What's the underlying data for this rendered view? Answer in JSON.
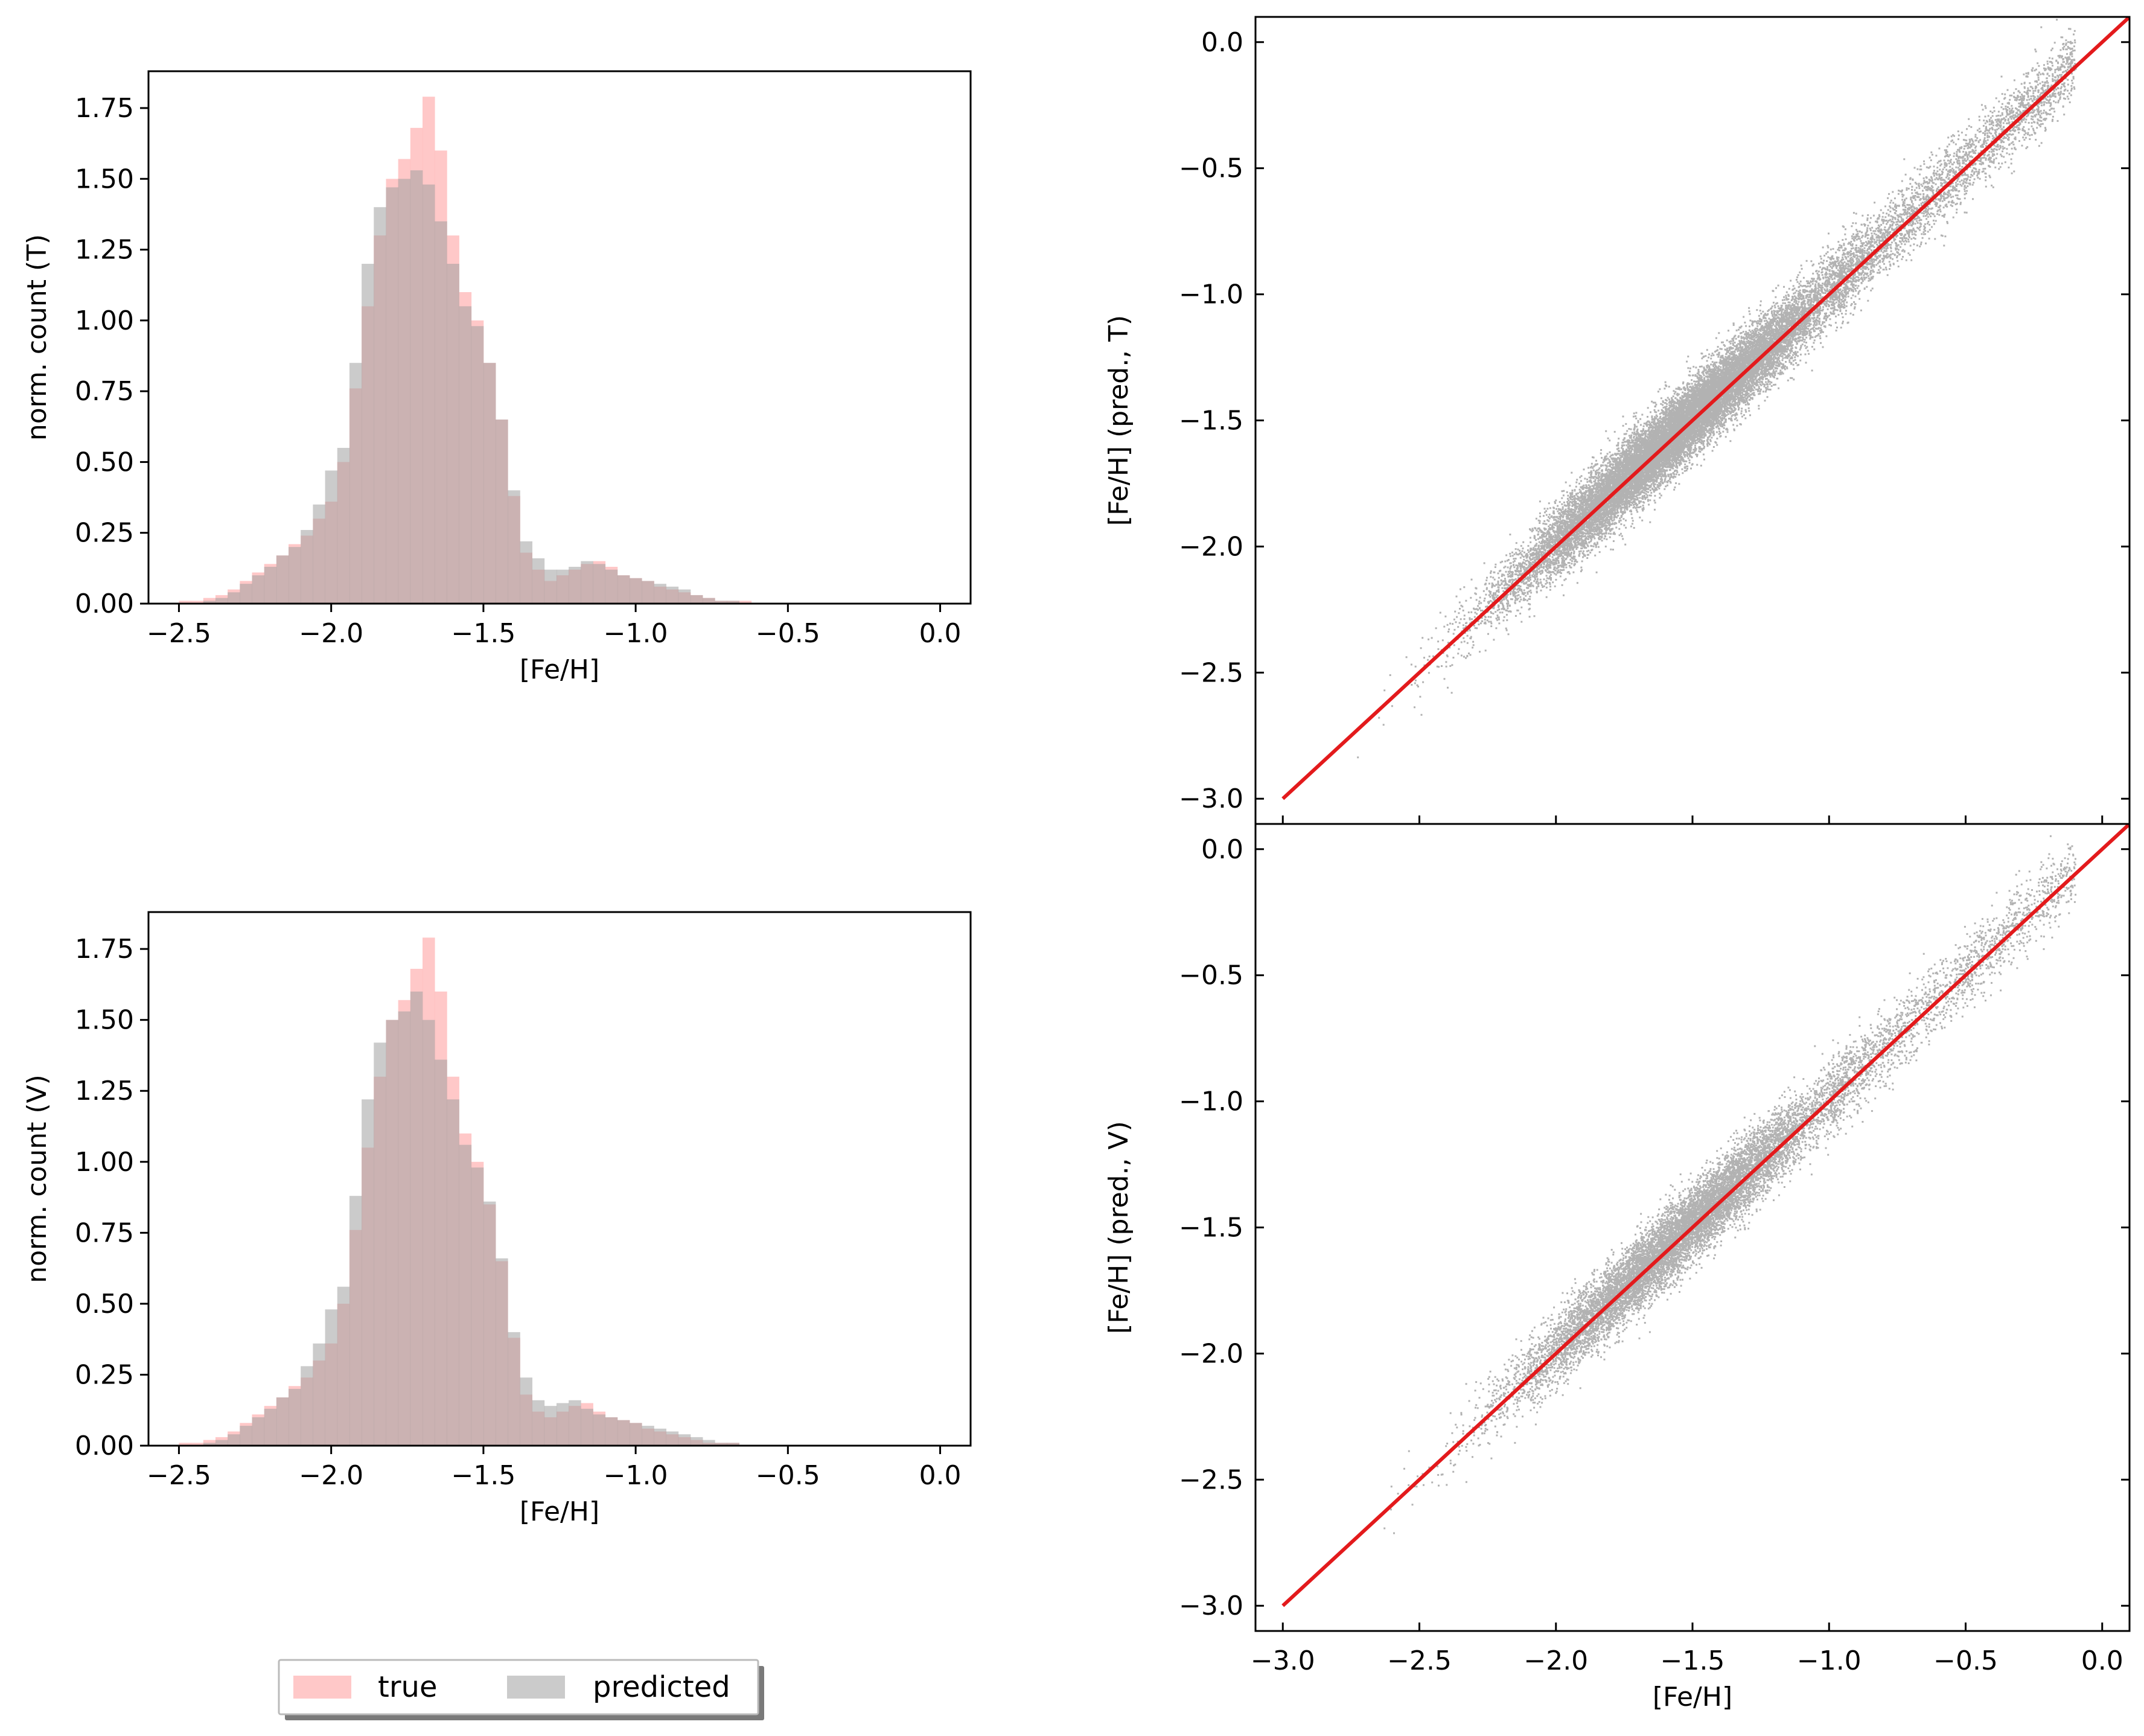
{
  "colors": {
    "true_fill": "#ffb6b6",
    "predicted_fill": "#a0a0a0",
    "scatter": "#000000",
    "one_to_one": "#e31a1c"
  },
  "legend": {
    "placement": "bottom-left",
    "entries": [
      {
        "label": "true",
        "color": "#ffb6b6"
      },
      {
        "label": "predicted",
        "color": "#a0a0a0"
      }
    ]
  },
  "chart_data": [
    {
      "type": "bar",
      "name": "hist_T",
      "xlabel": "[Fe/H]",
      "ylabel": "norm. count (T)",
      "xlim": [
        -2.6,
        0.1
      ],
      "ylim": [
        0,
        1.88
      ],
      "xticks": [
        -2.5,
        -2.0,
        -1.5,
        -1.0,
        -0.5,
        0.0
      ],
      "xtick_labels": [
        "−2.5",
        "−2.0",
        "−1.5",
        "−1.0",
        "−0.5",
        "0.0"
      ],
      "yticks": [
        0,
        0.25,
        0.5,
        0.75,
        1.0,
        1.25,
        1.5,
        1.75
      ],
      "ytick_labels": [
        "0.00",
        "0.25",
        "0.50",
        "0.75",
        "1.00",
        "1.25",
        "1.50",
        "1.75"
      ],
      "bin_start": -2.5,
      "bin_width": 0.04,
      "series": [
        {
          "label": "true",
          "values": [
            0.01,
            0.01,
            0.02,
            0.03,
            0.05,
            0.08,
            0.11,
            0.14,
            0.17,
            0.21,
            0.24,
            0.3,
            0.36,
            0.5,
            0.76,
            1.05,
            1.3,
            1.5,
            1.57,
            1.68,
            1.79,
            1.6,
            1.3,
            1.1,
            1.0,
            0.85,
            0.65,
            0.38,
            0.18,
            0.12,
            0.08,
            0.1,
            0.12,
            0.14,
            0.15,
            0.13,
            0.1,
            0.09,
            0.08,
            0.06,
            0.05,
            0.04,
            0.03,
            0.02,
            0.01,
            0.01,
            0.01,
            0.0,
            0.0,
            0.0,
            0.0,
            0.0,
            0.0,
            0.0,
            0.0,
            0.0,
            0.0,
            0.0,
            0.0,
            0.0,
            0.0,
            0.0
          ]
        },
        {
          "label": "predicted",
          "values": [
            0.0,
            0.0,
            0.01,
            0.02,
            0.04,
            0.07,
            0.1,
            0.13,
            0.17,
            0.2,
            0.26,
            0.35,
            0.47,
            0.55,
            0.85,
            1.2,
            1.4,
            1.47,
            1.5,
            1.53,
            1.48,
            1.35,
            1.2,
            1.05,
            0.98,
            0.85,
            0.65,
            0.4,
            0.22,
            0.16,
            0.12,
            0.12,
            0.13,
            0.15,
            0.14,
            0.12,
            0.1,
            0.09,
            0.08,
            0.07,
            0.06,
            0.05,
            0.03,
            0.02,
            0.01,
            0.01,
            0.0,
            0.0,
            0.0,
            0.0,
            0.0,
            0.0,
            0.0,
            0.0,
            0.0,
            0.0,
            0.0,
            0.0,
            0.0,
            0.0,
            0.0,
            0.0
          ]
        }
      ]
    },
    {
      "type": "bar",
      "name": "hist_V",
      "xlabel": "[Fe/H]",
      "ylabel": "norm. count (V)",
      "xlim": [
        -2.6,
        0.1
      ],
      "ylim": [
        0,
        1.88
      ],
      "xticks": [
        -2.5,
        -2.0,
        -1.5,
        -1.0,
        -0.5,
        0.0
      ],
      "xtick_labels": [
        "−2.5",
        "−2.0",
        "−1.5",
        "−1.0",
        "−0.5",
        "0.0"
      ],
      "yticks": [
        0,
        0.25,
        0.5,
        0.75,
        1.0,
        1.25,
        1.5,
        1.75
      ],
      "ytick_labels": [
        "0.00",
        "0.25",
        "0.50",
        "0.75",
        "1.00",
        "1.25",
        "1.50",
        "1.75"
      ],
      "bin_start": -2.5,
      "bin_width": 0.04,
      "series": [
        {
          "label": "true",
          "values": [
            0.01,
            0.01,
            0.02,
            0.03,
            0.05,
            0.08,
            0.11,
            0.14,
            0.17,
            0.21,
            0.24,
            0.3,
            0.36,
            0.5,
            0.76,
            1.05,
            1.3,
            1.5,
            1.57,
            1.68,
            1.79,
            1.6,
            1.3,
            1.1,
            1.0,
            0.85,
            0.65,
            0.38,
            0.18,
            0.12,
            0.1,
            0.12,
            0.14,
            0.15,
            0.12,
            0.1,
            0.09,
            0.08,
            0.06,
            0.05,
            0.04,
            0.03,
            0.02,
            0.01,
            0.01,
            0.01,
            0.0,
            0.0,
            0.0,
            0.0,
            0.0,
            0.0,
            0.0,
            0.0,
            0.0,
            0.0,
            0.0,
            0.0,
            0.0,
            0.0,
            0.0,
            0.0
          ]
        },
        {
          "label": "predicted",
          "values": [
            0.0,
            0.0,
            0.01,
            0.02,
            0.04,
            0.07,
            0.1,
            0.13,
            0.17,
            0.2,
            0.28,
            0.36,
            0.48,
            0.56,
            0.88,
            1.22,
            1.42,
            1.5,
            1.53,
            1.6,
            1.5,
            1.36,
            1.22,
            1.06,
            0.98,
            0.86,
            0.66,
            0.4,
            0.24,
            0.16,
            0.14,
            0.15,
            0.16,
            0.13,
            0.11,
            0.1,
            0.09,
            0.08,
            0.07,
            0.06,
            0.05,
            0.04,
            0.03,
            0.02,
            0.01,
            0.01,
            0.0,
            0.0,
            0.0,
            0.0,
            0.0,
            0.0,
            0.0,
            0.0,
            0.0,
            0.0,
            0.0,
            0.0,
            0.0,
            0.0,
            0.0,
            0.0
          ]
        }
      ]
    },
    {
      "type": "scatter",
      "name": "scatter_T",
      "xlabel": "",
      "ylabel": "[Fe/H] (pred., T)",
      "xlim": [
        -3.1,
        0.1
      ],
      "ylim": [
        -3.1,
        0.1
      ],
      "xticks": [
        -3.0,
        -2.5,
        -2.0,
        -1.5,
        -1.0,
        -0.5,
        0.0
      ],
      "xtick_labels": [],
      "yticks": [
        -3.0,
        -2.5,
        -2.0,
        -1.5,
        -1.0,
        -0.5,
        0.0
      ],
      "ytick_labels": [
        "−3.0",
        "−2.5",
        "−2.0",
        "−1.5",
        "−1.0",
        "−0.5",
        "0.0"
      ],
      "one_to_one": {
        "x": [
          -3.0,
          0.1
        ],
        "y": [
          -3.0,
          0.1
        ]
      },
      "point_cloud": {
        "n_points": 22000,
        "x_mean": -1.55,
        "x_std": 0.3,
        "scatter_std": 0.07,
        "x_range": [
          -2.75,
          -0.1
        ]
      }
    },
    {
      "type": "scatter",
      "name": "scatter_V",
      "xlabel": "[Fe/H]",
      "ylabel": "[Fe/H] (pred., V)",
      "xlim": [
        -3.1,
        0.1
      ],
      "ylim": [
        -3.1,
        0.1
      ],
      "xticks": [
        -3.0,
        -2.5,
        -2.0,
        -1.5,
        -1.0,
        -0.5,
        0.0
      ],
      "xtick_labels": [
        "−3.0",
        "−2.5",
        "−2.0",
        "−1.5",
        "−1.0",
        "−0.5",
        "0.0"
      ],
      "yticks": [
        -3.0,
        -2.5,
        -2.0,
        -1.5,
        -1.0,
        -0.5,
        0.0
      ],
      "ytick_labels": [
        "−3.0",
        "−2.5",
        "−2.0",
        "−1.5",
        "−1.0",
        "−0.5",
        "0.0"
      ],
      "one_to_one": {
        "x": [
          -3.0,
          0.1
        ],
        "y": [
          -3.0,
          0.1
        ]
      },
      "point_cloud": {
        "n_points": 12000,
        "x_mean": -1.55,
        "x_std": 0.3,
        "scatter_std": 0.07,
        "x_range": [
          -2.75,
          -0.1
        ]
      }
    }
  ]
}
